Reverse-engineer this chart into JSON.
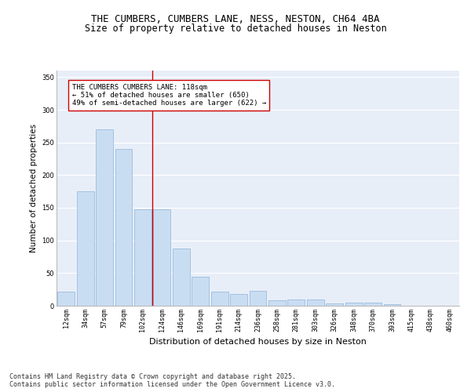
{
  "title1": "THE CUMBERS, CUMBERS LANE, NESS, NESTON, CH64 4BA",
  "title2": "Size of property relative to detached houses in Neston",
  "xlabel": "Distribution of detached houses by size in Neston",
  "ylabel": "Number of detached properties",
  "categories": [
    "12sqm",
    "34sqm",
    "57sqm",
    "79sqm",
    "102sqm",
    "124sqm",
    "146sqm",
    "169sqm",
    "191sqm",
    "214sqm",
    "236sqm",
    "258sqm",
    "281sqm",
    "303sqm",
    "326sqm",
    "348sqm",
    "370sqm",
    "393sqm",
    "415sqm",
    "438sqm",
    "460sqm"
  ],
  "values": [
    22,
    175,
    270,
    240,
    148,
    148,
    88,
    45,
    22,
    18,
    23,
    8,
    10,
    10,
    4,
    5,
    5,
    2,
    0,
    0,
    0
  ],
  "bar_color": "#c9ddf2",
  "bar_edge_color": "#9bbcdd",
  "background_color": "#e8eef8",
  "grid_color": "#ffffff",
  "vline_color": "#cc0000",
  "vline_pos": 4.5,
  "annotation_text": "THE CUMBERS CUMBERS LANE: 118sqm\n← 51% of detached houses are smaller (650)\n49% of semi-detached houses are larger (622) →",
  "annotation_box_color": "#ffffff",
  "annotation_box_edge": "#cc0000",
  "footer": "Contains HM Land Registry data © Crown copyright and database right 2025.\nContains public sector information licensed under the Open Government Licence v3.0.",
  "ylim": [
    0,
    360
  ],
  "yticks": [
    0,
    50,
    100,
    150,
    200,
    250,
    300,
    350
  ],
  "title_fontsize": 9,
  "subtitle_fontsize": 8.5,
  "tick_fontsize": 6,
  "ylabel_fontsize": 7.5,
  "xlabel_fontsize": 8,
  "annot_fontsize": 6.5,
  "footer_fontsize": 6
}
